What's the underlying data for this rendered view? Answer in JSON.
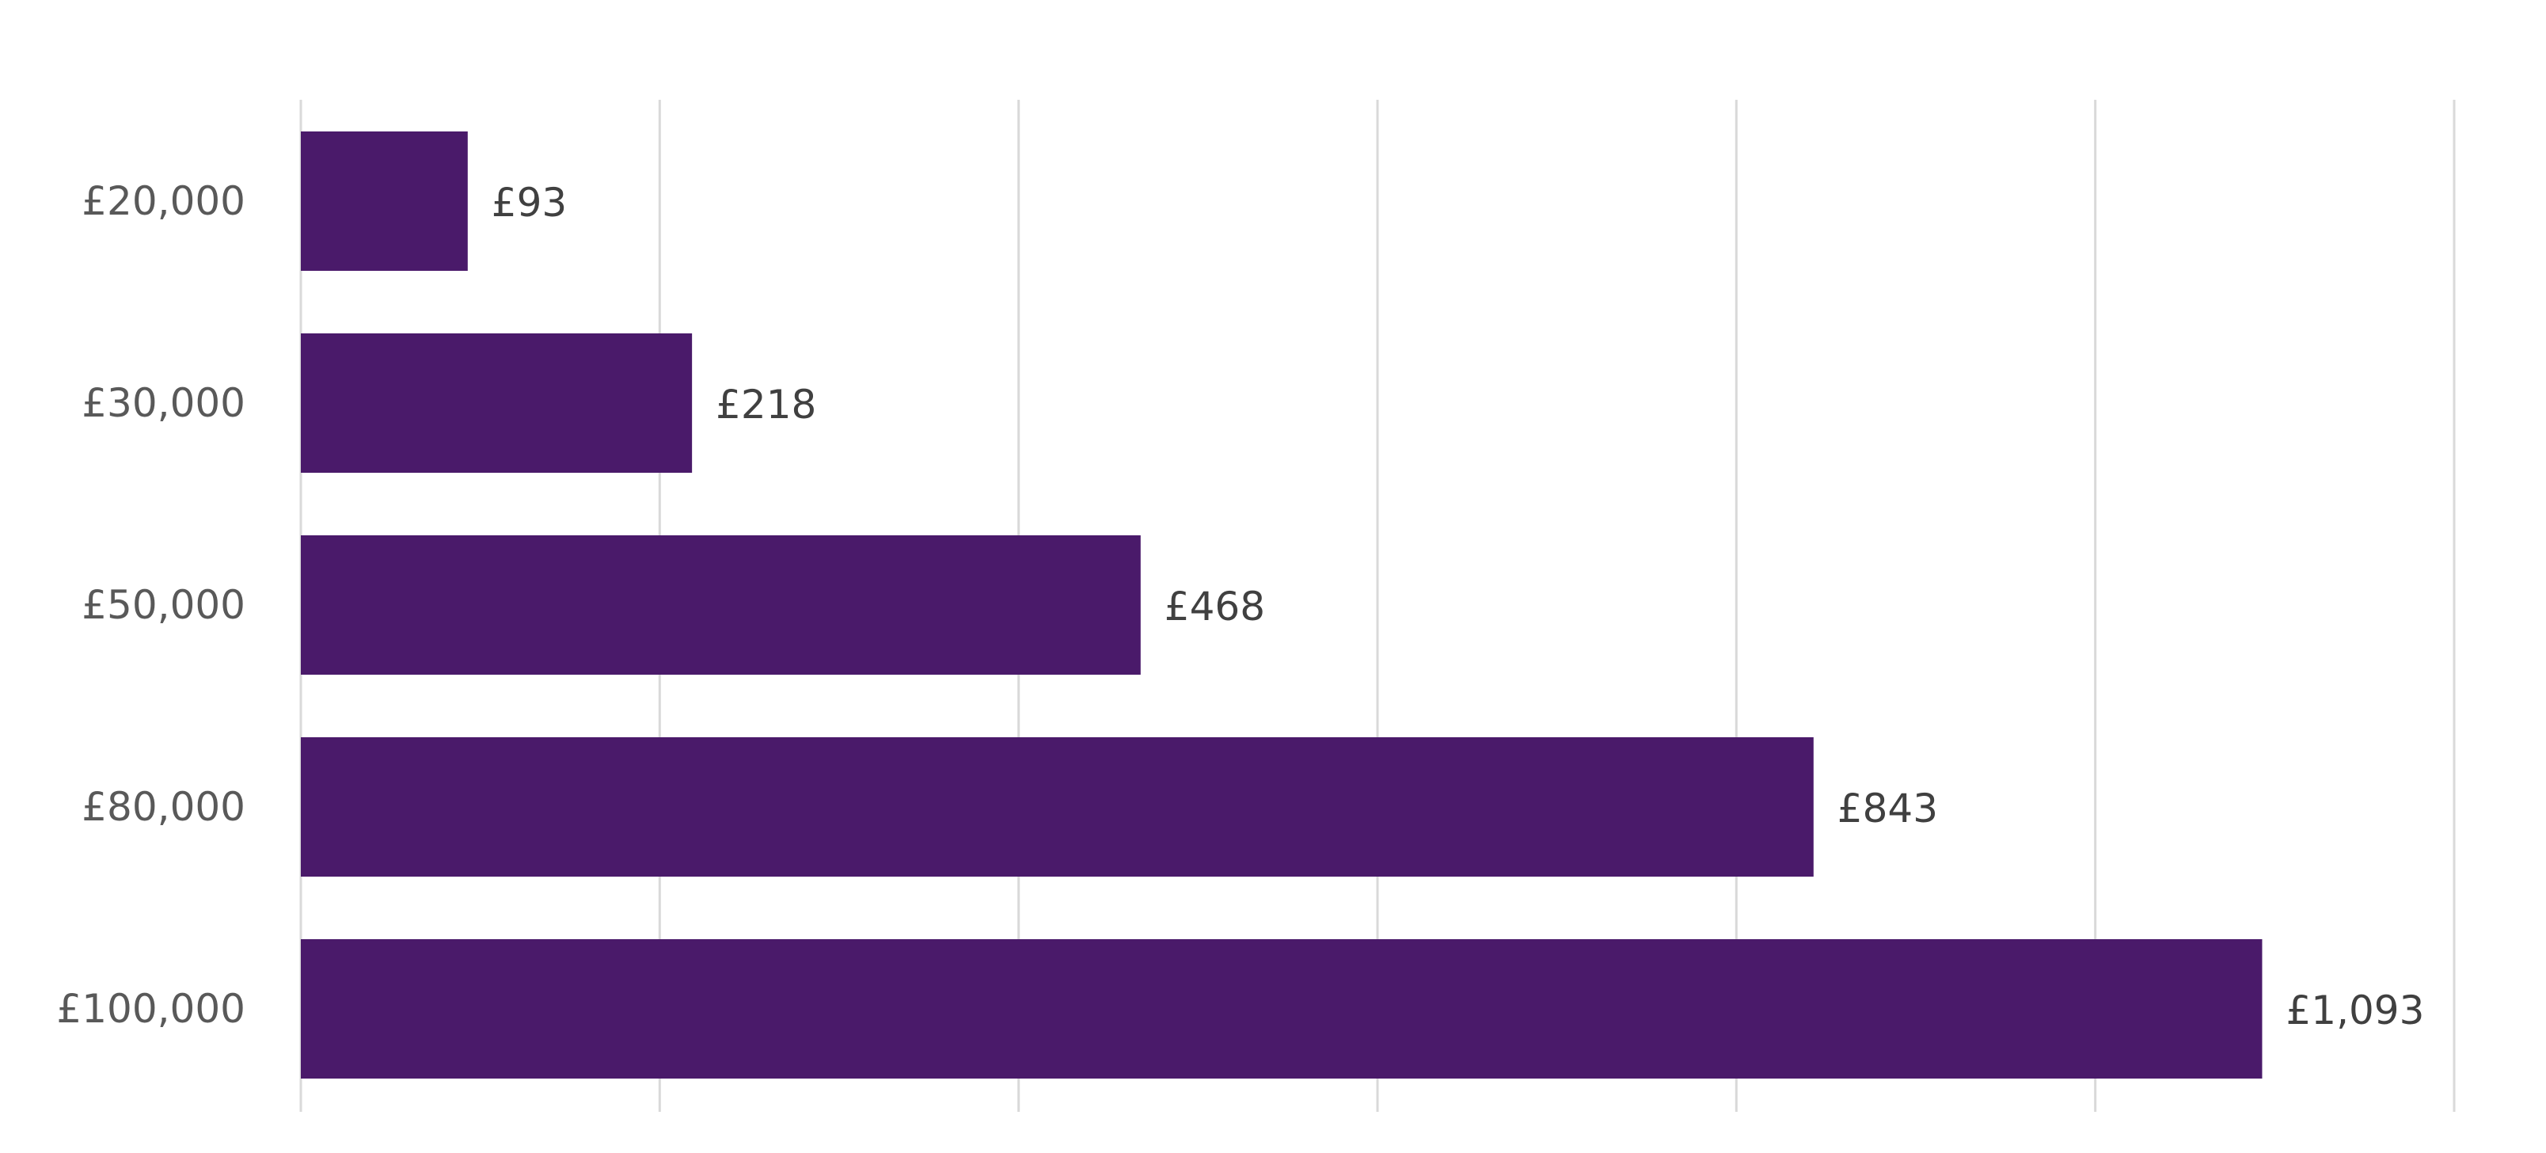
{
  "chart_data": {
    "type": "bar",
    "orientation": "horizontal",
    "categories": [
      "£20,000",
      "£30,000",
      "£50,000",
      "£80,000",
      "£100,000"
    ],
    "series": [
      {
        "values": [
          93,
          218,
          468,
          843,
          1093
        ],
        "value_labels": [
          "£93",
          "£218",
          "£468",
          "£843",
          "£1,093"
        ]
      }
    ],
    "xlim": [
      0,
      1200
    ],
    "x_gridlines": [
      0,
      200,
      400,
      600,
      800,
      1000,
      1200
    ],
    "grid": true,
    "legend": "none",
    "bar_color": "#4a1a6a",
    "gridline_color": "#d9d9d9",
    "category_label_color": "#595959",
    "value_label_color": "#404040"
  }
}
